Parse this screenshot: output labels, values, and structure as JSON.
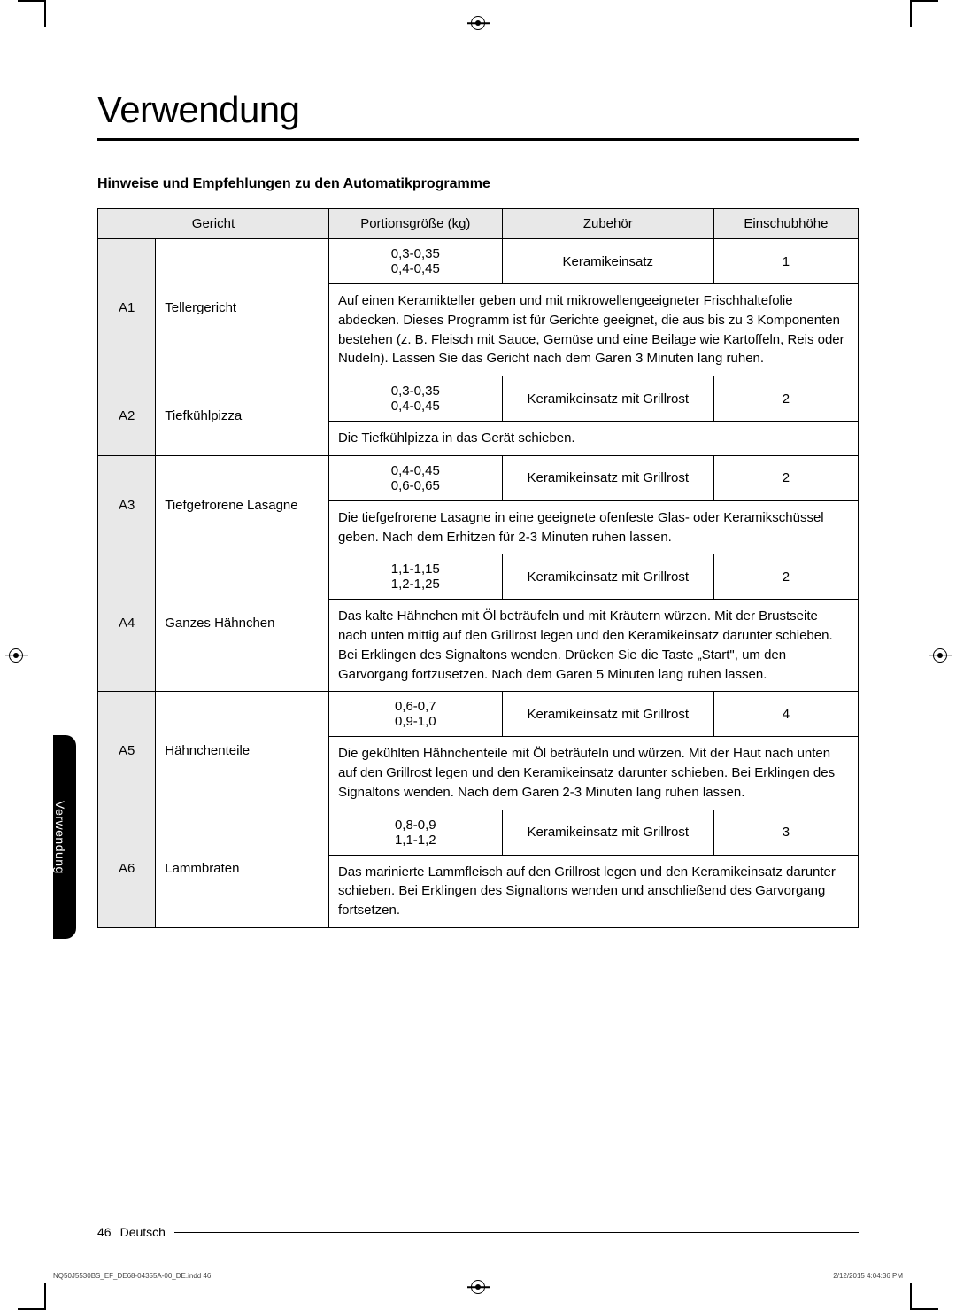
{
  "title": "Verwendung",
  "subtitle": "Hinweise und Empfehlungen zu den Automatikprogramme",
  "headers": {
    "dish": "Gericht",
    "portion": "Portionsgröße (kg)",
    "accessory": "Zubehör",
    "level": "Einschubhöhe"
  },
  "rows": [
    {
      "code": "A1",
      "dish": "Tellergericht",
      "portion": "0,3-0,35\n0,4-0,45",
      "accessory": "Keramikeinsatz",
      "level": "1",
      "desc": "Auf einen Keramikteller geben und mit mikrowellengeeigneter Frischhaltefolie abdecken. Dieses Programm ist für Gerichte geeignet, die aus bis zu 3 Komponenten bestehen (z. B. Fleisch mit Sauce, Gemüse und eine Beilage wie Kartoffeln, Reis oder Nudeln). Lassen Sie das Gericht nach dem Garen 3 Minuten lang ruhen."
    },
    {
      "code": "A2",
      "dish": "Tiefkühlpizza",
      "portion": "0,3-0,35\n0,4-0,45",
      "accessory": "Keramikeinsatz mit Grillrost",
      "level": "2",
      "desc": "Die Tiefkühlpizza in das Gerät schieben."
    },
    {
      "code": "A3",
      "dish": "Tiefgefrorene Lasagne",
      "portion": "0,4-0,45\n0,6-0,65",
      "accessory": "Keramikeinsatz mit Grillrost",
      "level": "2",
      "desc": "Die tiefgefrorene Lasagne in eine geeignete ofenfeste Glas- oder Keramikschüssel geben. Nach dem Erhitzen für 2-3 Minuten ruhen lassen."
    },
    {
      "code": "A4",
      "dish": "Ganzes Hähnchen",
      "portion": "1,1-1,15\n1,2-1,25",
      "accessory": "Keramikeinsatz mit Grillrost",
      "level": "2",
      "desc": "Das kalte Hähnchen mit Öl beträufeln und mit Kräutern würzen. Mit der Brustseite nach unten mittig auf den Grillrost legen und den Keramikeinsatz darunter schieben. Bei Erklingen des Signaltons wenden. Drücken Sie die Taste „Start\", um den Garvorgang fortzusetzen. Nach dem Garen 5 Minuten lang ruhen lassen."
    },
    {
      "code": "A5",
      "dish": "Hähnchenteile",
      "portion": "0,6-0,7\n0,9-1,0",
      "accessory": "Keramikeinsatz mit Grillrost",
      "level": "4",
      "desc": "Die gekühlten Hähnchenteile mit Öl beträufeln und würzen. Mit der Haut nach unten auf den Grillrost legen und den Keramikeinsatz darunter schieben. Bei Erklingen des Signaltons wenden. Nach dem Garen 2-3 Minuten lang ruhen lassen."
    },
    {
      "code": "A6",
      "dish": "Lammbraten",
      "portion": "0,8-0,9\n1,1-1,2",
      "accessory": "Keramikeinsatz mit Grillrost",
      "level": "3",
      "desc": "Das marinierte Lammfleisch auf den Grillrost legen und den Keramikeinsatz darunter schieben. Bei Erklingen des Signaltons wenden und anschließend des Garvorgang fortsetzen."
    }
  ],
  "sideTab": "Verwendung",
  "pageNum": "46",
  "lang": "Deutsch",
  "tinyLeft": "NQ50J5530BS_EF_DE68-04355A-00_DE.indd   46",
  "tinyRight": "2/12/2015   4:04:36 PM"
}
